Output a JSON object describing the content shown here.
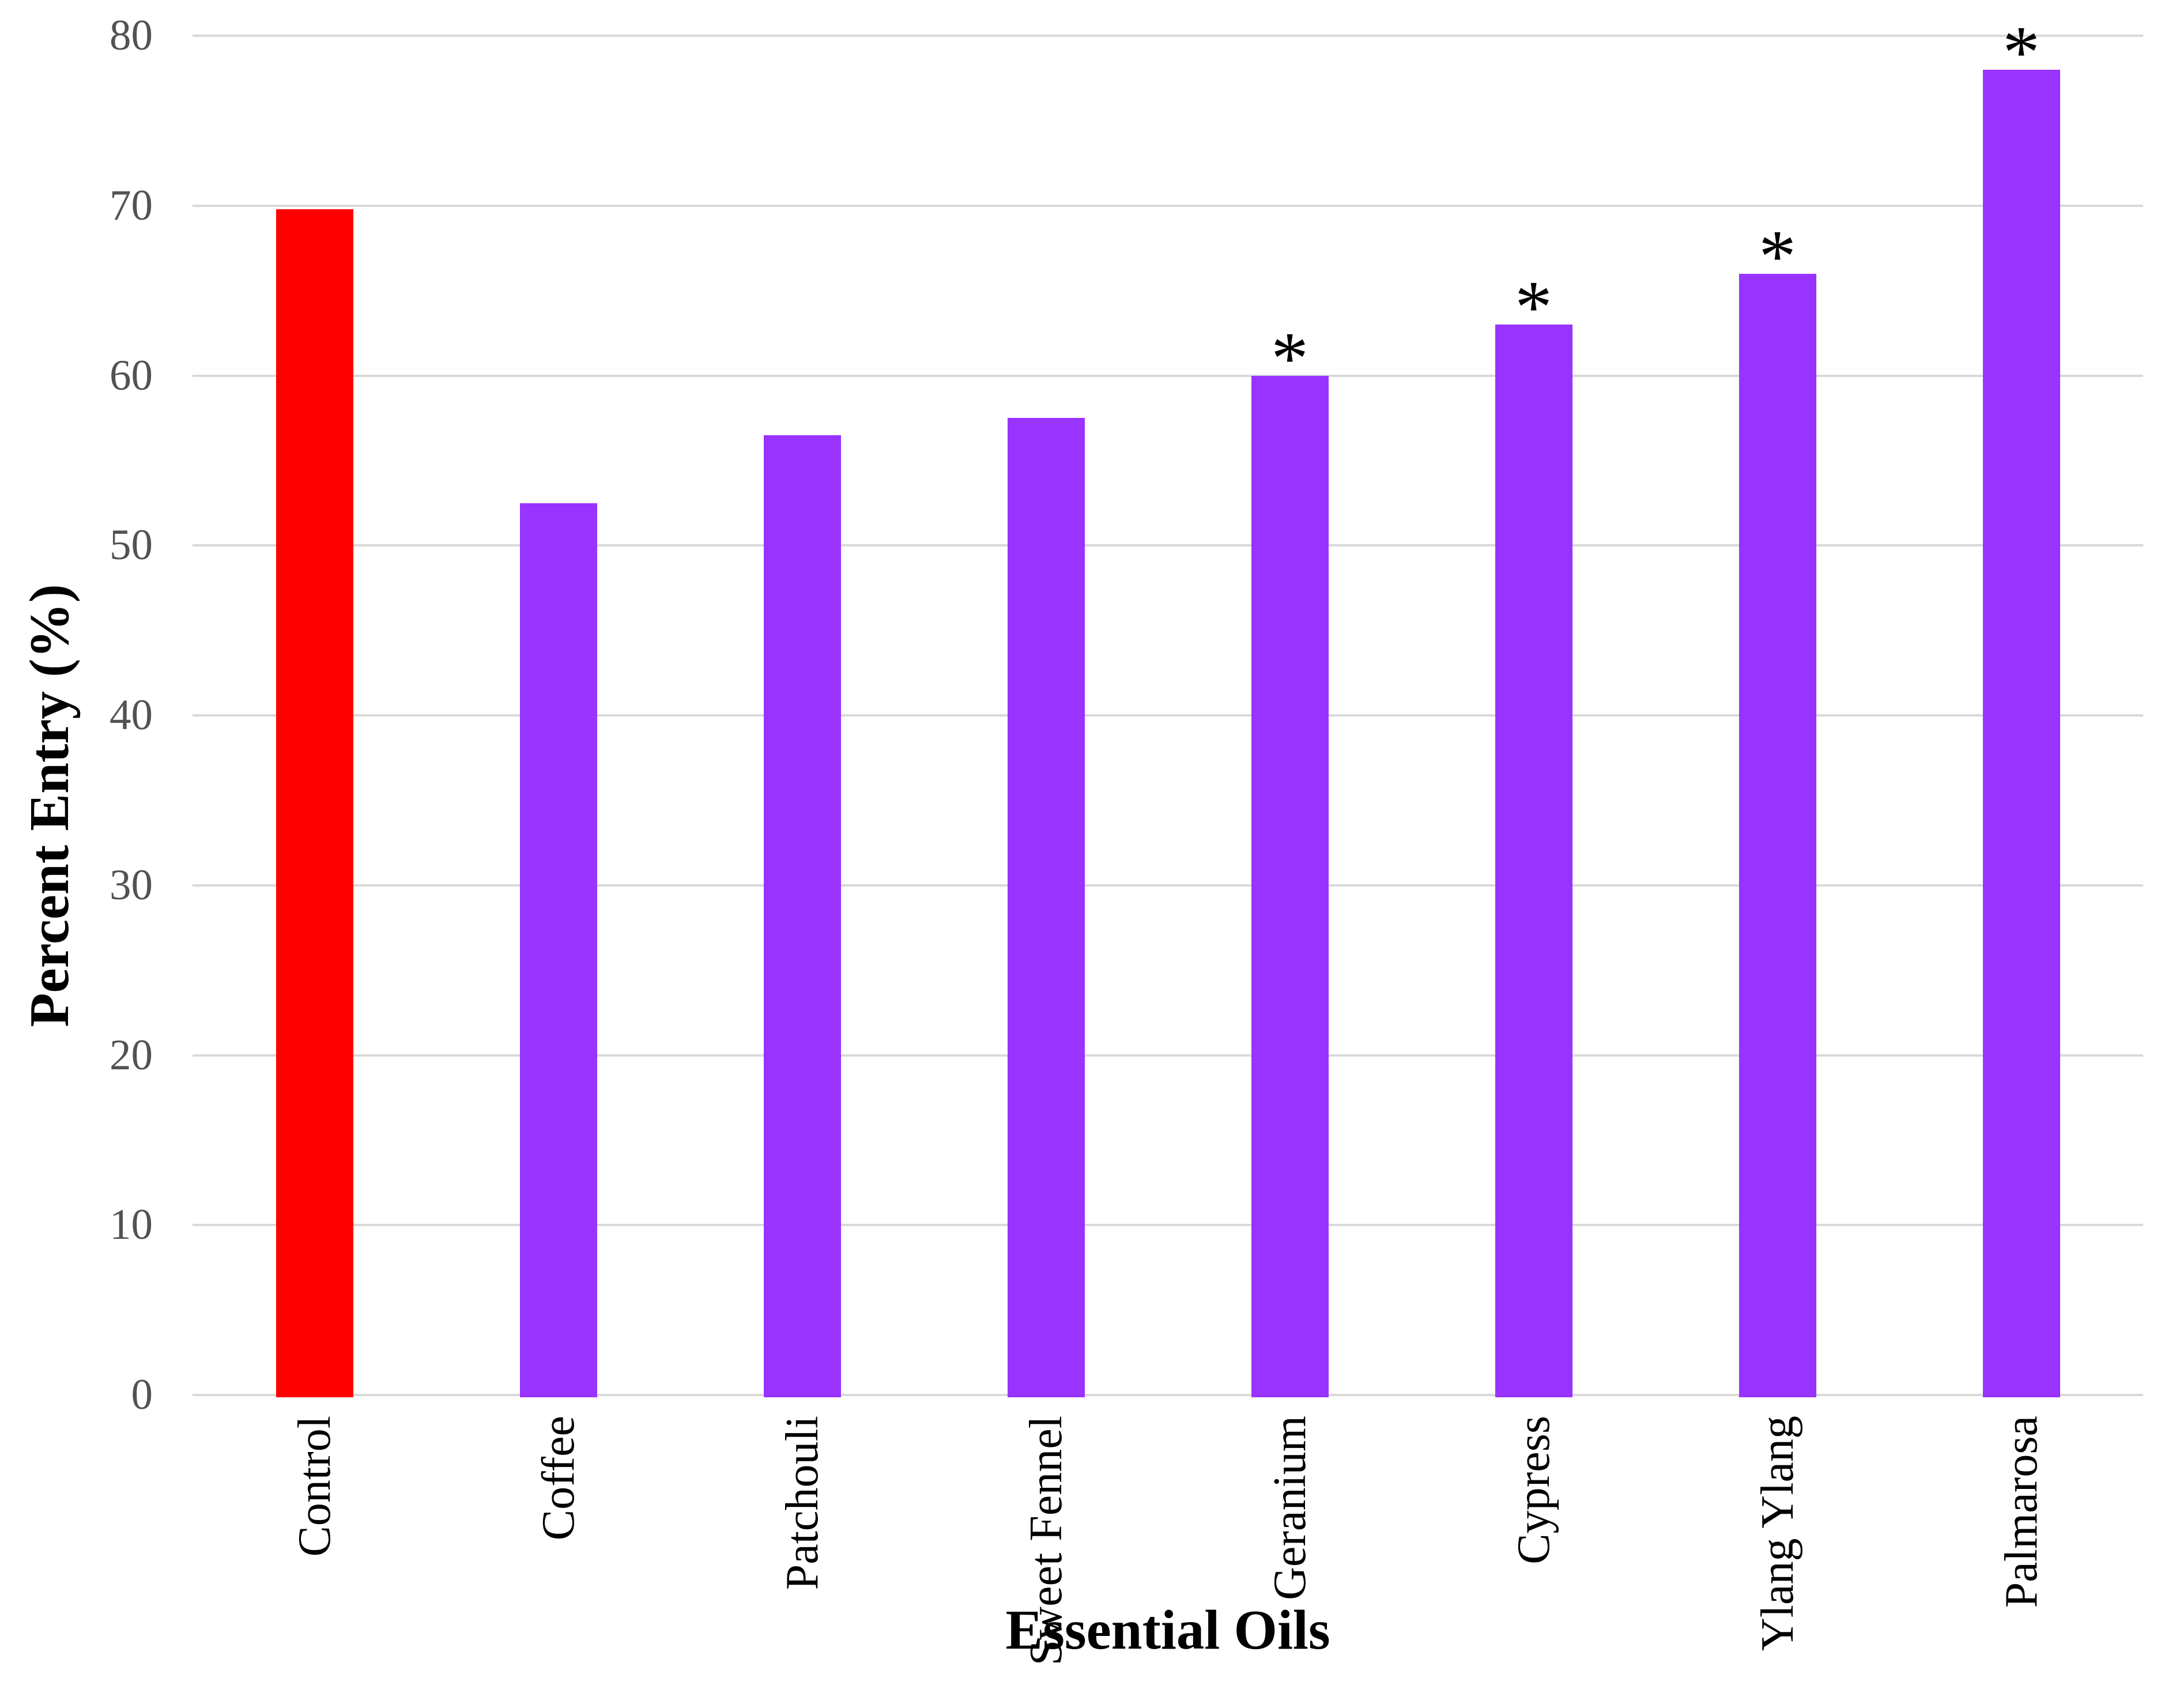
{
  "figure": {
    "background_color": "#FFFFFF"
  },
  "chart_data": {
    "type": "bar",
    "title": "",
    "xlabel": "Essential Oils",
    "ylabel": "Percent Entry (%)",
    "categories": [
      "Control",
      "Coffee",
      "Patchouli",
      "Sweet Fennel",
      "Geranium",
      "Cypress",
      "Ylang Ylang",
      "Palmarosa"
    ],
    "values": [
      69.8,
      52.5,
      56.5,
      57.5,
      60,
      63,
      66,
      78
    ],
    "significant": [
      false,
      false,
      false,
      false,
      true,
      true,
      true,
      true
    ],
    "significance_marker": "*",
    "ylim": [
      0,
      80
    ],
    "yticks": [
      0,
      10,
      20,
      30,
      40,
      50,
      60,
      70,
      80
    ],
    "ytick_step": 10,
    "grid": true,
    "gridlines_horizontal": true,
    "legend": null,
    "bar_colors": [
      "#FF0000",
      "#9933FF",
      "#9933FF",
      "#9933FF",
      "#9933FF",
      "#9933FF",
      "#9933FF",
      "#9933FF"
    ],
    "colors": {
      "control_bar": "#FF0000",
      "treatment_bar": "#9933FF",
      "gridline": "#D9D9D9",
      "tick_label": "#525252",
      "axis_title": "#000000",
      "category_label": "#000000"
    }
  }
}
